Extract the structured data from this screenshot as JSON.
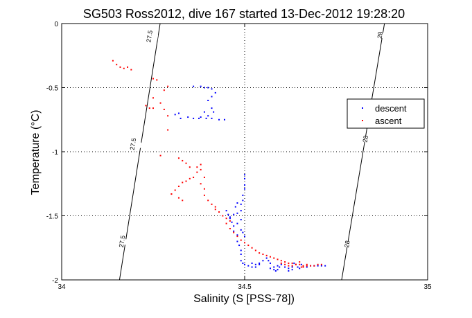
{
  "chart_data": {
    "type": "scatter",
    "title": "SG503 Ross2012, dive 167 started 13-Dec-2012 19:28:20",
    "xlabel": "Salinity (S [PSS-78])",
    "ylabel": "Temperature (°C)",
    "xlim": [
      34,
      35
    ],
    "ylim": [
      -2,
      0
    ],
    "xticks": [
      "34",
      "34.5",
      "35"
    ],
    "yticks": [
      "0",
      "-0.5",
      "-1",
      "-1.5",
      "-2"
    ],
    "grid": true,
    "legend_position": "right",
    "series": [
      {
        "name": "descent",
        "color": "#0000ff",
        "points": [
          [
            34.36,
            -0.49
          ],
          [
            34.38,
            -0.49
          ],
          [
            34.39,
            -0.5
          ],
          [
            34.4,
            -0.5
          ],
          [
            34.41,
            -0.51
          ],
          [
            34.42,
            -0.54
          ],
          [
            34.41,
            -0.57
          ],
          [
            34.4,
            -0.6
          ],
          [
            34.41,
            -0.66
          ],
          [
            34.415,
            -0.69
          ],
          [
            34.395,
            -0.74
          ],
          [
            34.38,
            -0.73
          ],
          [
            34.36,
            -0.74
          ],
          [
            34.345,
            -0.73
          ],
          [
            34.32,
            -0.7
          ],
          [
            34.31,
            -0.71
          ],
          [
            34.325,
            -0.74
          ],
          [
            34.39,
            -0.69
          ],
          [
            34.4,
            -0.72
          ],
          [
            34.41,
            -0.74
          ],
          [
            34.43,
            -0.75
          ],
          [
            34.445,
            -0.75
          ],
          [
            34.375,
            -0.74
          ],
          [
            34.49,
            -1.46
          ],
          [
            34.48,
            -1.48
          ],
          [
            34.47,
            -1.49
          ],
          [
            34.46,
            -1.52
          ],
          [
            34.465,
            -1.55
          ],
          [
            34.47,
            -1.58
          ],
          [
            34.47,
            -1.62
          ],
          [
            34.48,
            -1.65
          ],
          [
            34.48,
            -1.7
          ],
          [
            34.485,
            -1.73
          ],
          [
            34.49,
            -1.77
          ],
          [
            34.49,
            -1.8
          ],
          [
            34.49,
            -1.85
          ],
          [
            34.495,
            -1.87
          ],
          [
            34.5,
            -1.88
          ],
          [
            34.51,
            -1.89
          ],
          [
            34.52,
            -1.9
          ],
          [
            34.53,
            -1.9
          ],
          [
            34.54,
            -1.88
          ],
          [
            34.55,
            -1.85
          ],
          [
            34.56,
            -1.83
          ],
          [
            34.565,
            -1.85
          ],
          [
            34.57,
            -1.87
          ],
          [
            34.57,
            -1.91
          ],
          [
            34.58,
            -1.92
          ],
          [
            34.585,
            -1.93
          ],
          [
            34.59,
            -1.92
          ],
          [
            34.595,
            -1.9
          ],
          [
            34.6,
            -1.88
          ],
          [
            34.61,
            -1.9
          ],
          [
            34.62,
            -1.91
          ],
          [
            34.63,
            -1.9
          ],
          [
            34.635,
            -1.87
          ],
          [
            34.64,
            -1.88
          ],
          [
            34.65,
            -1.91
          ],
          [
            34.66,
            -1.9
          ],
          [
            34.67,
            -1.9
          ],
          [
            34.68,
            -1.89
          ],
          [
            34.69,
            -1.89
          ],
          [
            34.7,
            -1.89
          ],
          [
            34.71,
            -1.89
          ],
          [
            34.72,
            -1.89
          ],
          [
            34.49,
            -1.61
          ],
          [
            34.495,
            -1.63
          ],
          [
            34.5,
            -1.66
          ],
          [
            34.475,
            -1.43
          ],
          [
            34.48,
            -1.4
          ],
          [
            34.49,
            -1.41
          ],
          [
            34.495,
            -1.38
          ],
          [
            34.495,
            -1.34
          ],
          [
            34.5,
            -1.18
          ],
          [
            34.5,
            -1.21
          ],
          [
            34.5,
            -1.26
          ],
          [
            34.5,
            -1.29
          ],
          [
            34.46,
            -1.51
          ],
          [
            34.455,
            -1.49
          ],
          [
            34.45,
            -1.46
          ],
          [
            34.49,
            -1.53
          ],
          [
            34.48,
            -1.56
          ],
          [
            34.52,
            -1.87
          ],
          [
            34.53,
            -1.88
          ],
          [
            34.54,
            -1.87
          ],
          [
            34.58,
            -1.9
          ],
          [
            34.59,
            -1.89
          ],
          [
            34.62,
            -1.93
          ],
          [
            34.63,
            -1.92
          ],
          [
            34.645,
            -1.9
          ],
          [
            34.655,
            -1.88
          ]
        ]
      },
      {
        "name": "ascent",
        "color": "#ff0000",
        "points": [
          [
            34.14,
            -0.29
          ],
          [
            34.15,
            -0.32
          ],
          [
            34.16,
            -0.34
          ],
          [
            34.17,
            -0.35
          ],
          [
            34.18,
            -0.34
          ],
          [
            34.19,
            -0.36
          ],
          [
            34.25,
            -0.43
          ],
          [
            34.26,
            -0.44
          ],
          [
            34.29,
            -0.49
          ],
          [
            34.28,
            -0.52
          ],
          [
            34.25,
            -0.58
          ],
          [
            34.23,
            -0.64
          ],
          [
            34.24,
            -0.66
          ],
          [
            34.25,
            -0.66
          ],
          [
            34.27,
            -0.62
          ],
          [
            34.28,
            -0.67
          ],
          [
            34.29,
            -0.72
          ],
          [
            34.29,
            -0.83
          ],
          [
            34.27,
            -1.03
          ],
          [
            34.32,
            -1.05
          ],
          [
            34.33,
            -1.07
          ],
          [
            34.34,
            -1.09
          ],
          [
            34.35,
            -1.12
          ],
          [
            34.37,
            -1.12
          ],
          [
            34.38,
            -1.1
          ],
          [
            34.38,
            -1.14
          ],
          [
            34.37,
            -1.16
          ],
          [
            34.36,
            -1.2
          ],
          [
            34.35,
            -1.21
          ],
          [
            34.34,
            -1.23
          ],
          [
            34.33,
            -1.24
          ],
          [
            34.32,
            -1.27
          ],
          [
            34.31,
            -1.3
          ],
          [
            34.3,
            -1.33
          ],
          [
            34.32,
            -1.36
          ],
          [
            34.33,
            -1.38
          ],
          [
            34.39,
            -1.2
          ],
          [
            34.38,
            -1.25
          ],
          [
            34.39,
            -1.29
          ],
          [
            34.39,
            -1.34
          ],
          [
            34.4,
            -1.38
          ],
          [
            34.41,
            -1.41
          ],
          [
            34.42,
            -1.45
          ],
          [
            34.43,
            -1.47
          ],
          [
            34.44,
            -1.5
          ],
          [
            34.45,
            -1.52
          ],
          [
            34.46,
            -1.54
          ],
          [
            34.45,
            -1.56
          ],
          [
            34.46,
            -1.6
          ],
          [
            34.47,
            -1.63
          ],
          [
            34.48,
            -1.66
          ],
          [
            34.49,
            -1.69
          ],
          [
            34.5,
            -1.71
          ],
          [
            34.51,
            -1.73
          ],
          [
            34.52,
            -1.75
          ],
          [
            34.53,
            -1.77
          ],
          [
            34.54,
            -1.79
          ],
          [
            34.55,
            -1.8
          ],
          [
            34.56,
            -1.81
          ],
          [
            34.57,
            -1.82
          ],
          [
            34.58,
            -1.83
          ],
          [
            34.59,
            -1.84
          ],
          [
            34.6,
            -1.85
          ],
          [
            34.61,
            -1.86
          ],
          [
            34.62,
            -1.87
          ],
          [
            34.63,
            -1.87
          ],
          [
            34.64,
            -1.88
          ],
          [
            34.65,
            -1.88
          ],
          [
            34.66,
            -1.89
          ],
          [
            34.67,
            -1.89
          ],
          [
            34.68,
            -1.89
          ],
          [
            34.69,
            -1.89
          ],
          [
            34.7,
            -1.88
          ],
          [
            34.71,
            -1.88
          ],
          [
            34.6,
            -1.87
          ],
          [
            34.61,
            -1.88
          ],
          [
            34.62,
            -1.89
          ],
          [
            34.63,
            -1.89
          ],
          [
            34.64,
            -1.88
          ],
          [
            34.65,
            -1.86
          ],
          [
            34.655,
            -1.9
          ],
          [
            34.66,
            -1.9
          ],
          [
            34.67,
            -1.88
          ],
          [
            34.3,
            -1.33
          ],
          [
            34.42,
            -1.43
          ]
        ]
      }
    ],
    "isopycnals": [
      {
        "label": "27.5",
        "points": [
          [
            34.269,
            0
          ],
          [
            34.158,
            -2
          ]
        ]
      },
      {
        "label": "28",
        "points": [
          [
            34.882,
            0
          ],
          [
            34.765,
            -2
          ]
        ]
      }
    ],
    "isopycnal_labels": [
      {
        "text": "27.5",
        "at": [
          34.24,
          -0.1
        ]
      },
      {
        "text": "27.5",
        "at": [
          34.195,
          -0.94
        ]
      },
      {
        "text": "27.5",
        "at": [
          34.165,
          -1.7
        ]
      },
      {
        "text": "28",
        "at": [
          34.87,
          -0.09
        ]
      },
      {
        "text": "28",
        "at": [
          34.83,
          -0.9
        ]
      },
      {
        "text": "28",
        "at": [
          34.78,
          -1.72
        ]
      }
    ]
  }
}
